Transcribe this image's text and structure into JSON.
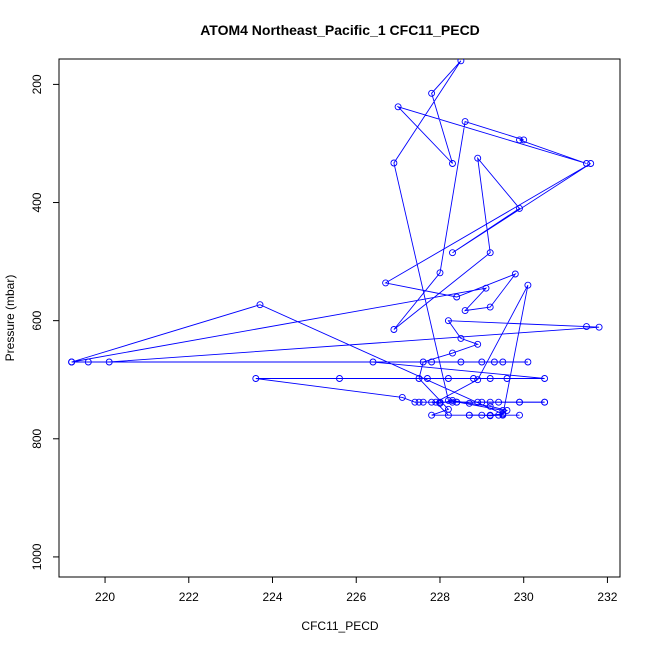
{
  "chart_data": {
    "type": "line",
    "title": "ATOM4 Northeast_Pacific_1 CFC11_PECD",
    "xlabel": "CFC11_PECD",
    "ylabel": "Pressure (mbar)",
    "xlim": [
      218.9,
      232.3
    ],
    "ylim": [
      1034,
      157
    ],
    "y_reversed": true,
    "grid": false,
    "legend": "none",
    "x_ticks": [
      220,
      222,
      224,
      226,
      228,
      230,
      232
    ],
    "y_ticks": [
      200,
      400,
      600,
      800,
      1000
    ],
    "series": [
      {
        "color": "#0000ff",
        "points": [
          [
            227.5,
            738
          ],
          [
            228.3,
            738
          ],
          [
            229.0,
            738
          ],
          [
            230.5,
            738
          ],
          [
            229.9,
            738
          ],
          [
            229.2,
            738
          ],
          [
            228.4,
            738
          ],
          [
            227.6,
            738
          ],
          [
            228.0,
            738
          ],
          [
            227.4,
            738
          ],
          [
            227.1,
            730
          ],
          [
            223.6,
            698
          ],
          [
            225.6,
            698
          ],
          [
            227.7,
            698
          ],
          [
            228.2,
            698
          ],
          [
            228.8,
            698
          ],
          [
            229.2,
            698
          ],
          [
            229.6,
            698
          ],
          [
            230.5,
            698
          ],
          [
            226.4,
            670
          ],
          [
            227.8,
            670
          ],
          [
            228.5,
            670
          ],
          [
            229.0,
            670
          ],
          [
            229.3,
            670
          ],
          [
            229.5,
            670
          ],
          [
            230.1,
            670
          ],
          [
            219.2,
            670
          ],
          [
            219.6,
            670
          ],
          [
            220.1,
            670
          ],
          [
            231.8,
            611
          ],
          [
            231.5,
            610
          ],
          [
            228.2,
            600
          ],
          [
            228.5,
            630
          ],
          [
            228.9,
            640
          ],
          [
            228.3,
            655
          ],
          [
            227.6,
            670
          ],
          [
            227.5,
            698
          ],
          [
            228.2,
            750
          ],
          [
            227.8,
            760
          ],
          [
            229.9,
            760
          ],
          [
            229.2,
            760
          ],
          [
            229.5,
            758
          ],
          [
            223.7,
            573
          ],
          [
            219.2,
            670
          ],
          [
            229.1,
            545
          ],
          [
            228.6,
            583
          ],
          [
            229.2,
            577
          ],
          [
            229.8,
            521
          ],
          [
            228.4,
            560
          ],
          [
            226.7,
            536
          ],
          [
            231.6,
            334
          ],
          [
            228.3,
            485
          ],
          [
            229.9,
            410
          ],
          [
            228.9,
            325
          ],
          [
            229.2,
            485
          ],
          [
            226.9,
            615
          ],
          [
            228.0,
            519
          ],
          [
            228.6,
            263
          ],
          [
            230.0,
            294
          ],
          [
            229.9,
            294
          ],
          [
            231.5,
            334
          ],
          [
            227.0,
            238
          ],
          [
            228.3,
            334
          ],
          [
            227.8,
            215
          ],
          [
            228.5,
            160
          ],
          [
            226.9,
            333
          ],
          [
            228.2,
            735
          ],
          [
            229.5,
            752
          ],
          [
            229.5,
            760
          ],
          [
            230.1,
            540
          ],
          [
            228.9,
            700
          ],
          [
            227.9,
            738
          ],
          [
            228.2,
            760
          ],
          [
            228.7,
            760
          ]
        ]
      },
      {
        "color": "#0000ff",
        "points": [
          [
            228.7,
            760
          ],
          [
            229.0,
            760
          ],
          [
            229.2,
            761
          ],
          [
            229.4,
            760
          ],
          [
            229.5,
            758
          ],
          [
            229.6,
            752
          ],
          [
            229.2,
            745
          ],
          [
            228.7,
            740
          ],
          [
            228.3,
            735
          ],
          [
            228.0,
            740
          ],
          [
            227.8,
            738
          ],
          [
            228.4,
            738
          ],
          [
            228.9,
            738
          ],
          [
            229.4,
            738
          ],
          [
            229.9,
            738
          ],
          [
            230.5,
            738
          ]
        ]
      }
    ]
  }
}
